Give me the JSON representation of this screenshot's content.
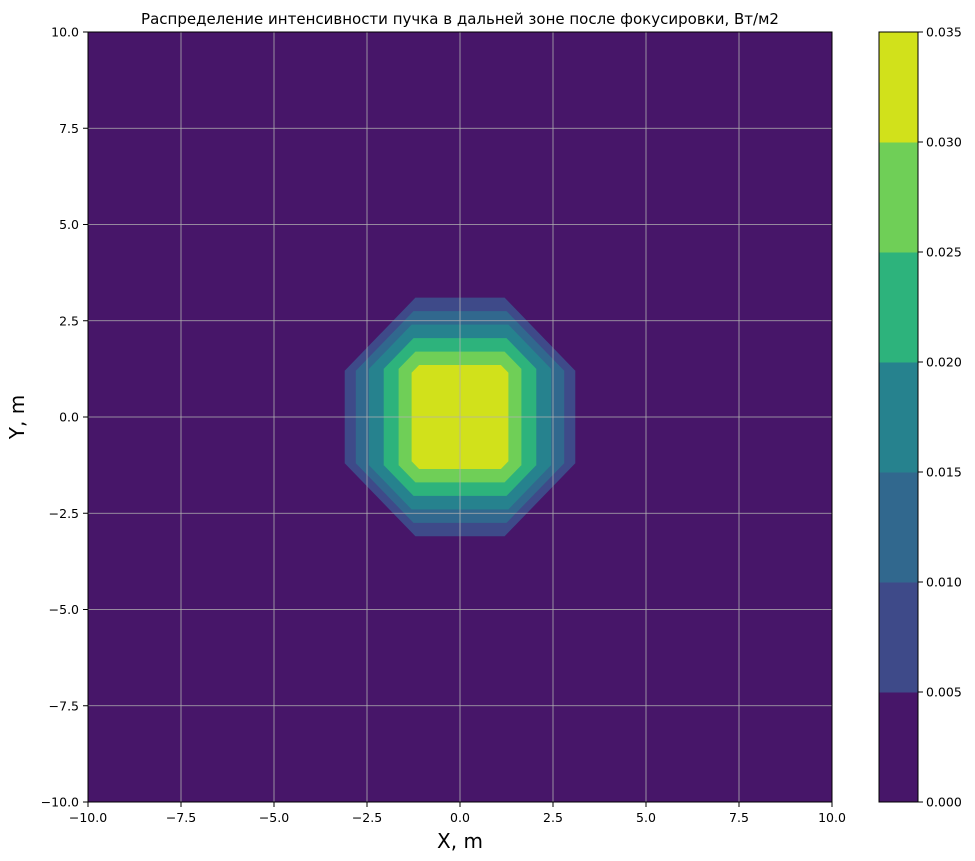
{
  "chart_data": {
    "type": "contourf",
    "title": "Распределение интенсивности пучка в дальней зоне после фокусировки, Вт/м2",
    "xlabel": "X, m",
    "ylabel": "Y, m",
    "xlim": [
      -10,
      10
    ],
    "ylim": [
      -10,
      10
    ],
    "x_ticks": [
      -10,
      -7.5,
      -5,
      -2.5,
      0,
      2.5,
      5,
      7.5,
      10
    ],
    "y_ticks": [
      -10,
      -7.5,
      -5,
      -2.5,
      0,
      2.5,
      5,
      7.5,
      10
    ],
    "x_tick_labels": [
      "−10.0",
      "−7.5",
      "−5.0",
      "−2.5",
      "0.0",
      "2.5",
      "5.0",
      "7.5",
      "10.0"
    ],
    "y_tick_labels": [
      "−10.0",
      "−7.5",
      "−5.0",
      "−2.5",
      "0.0",
      "2.5",
      "5.0",
      "7.5",
      "10.0"
    ],
    "grid": true,
    "colormap": "viridis",
    "levels": [
      0.0,
      0.005,
      0.01,
      0.015,
      0.02,
      0.025,
      0.03,
      0.035
    ],
    "colorbar_tick_labels": [
      "0.000",
      "0.005",
      "0.010",
      "0.015",
      "0.020",
      "0.025",
      "0.030",
      "0.035"
    ],
    "level_colors": [
      "#471669",
      "#3e4a89",
      "#31688e",
      "#26828e",
      "#2db37c",
      "#6fcf57",
      "#d1e11b"
    ],
    "contours": [
      {
        "level": 0.005,
        "half_width": 3.1,
        "half_height": 3.1,
        "corner": 1.9
      },
      {
        "level": 0.01,
        "half_width": 2.8,
        "half_height": 2.75,
        "corner": 1.55
      },
      {
        "level": 0.015,
        "half_width": 2.45,
        "half_height": 2.4,
        "corner": 1.15
      },
      {
        "level": 0.02,
        "half_width": 2.05,
        "half_height": 2.05,
        "corner": 0.8
      },
      {
        "level": 0.025,
        "half_width": 1.65,
        "half_height": 1.7,
        "corner": 0.45
      },
      {
        "level": 0.03,
        "half_width": 1.3,
        "half_height": 1.35,
        "corner": 0.2
      }
    ]
  }
}
